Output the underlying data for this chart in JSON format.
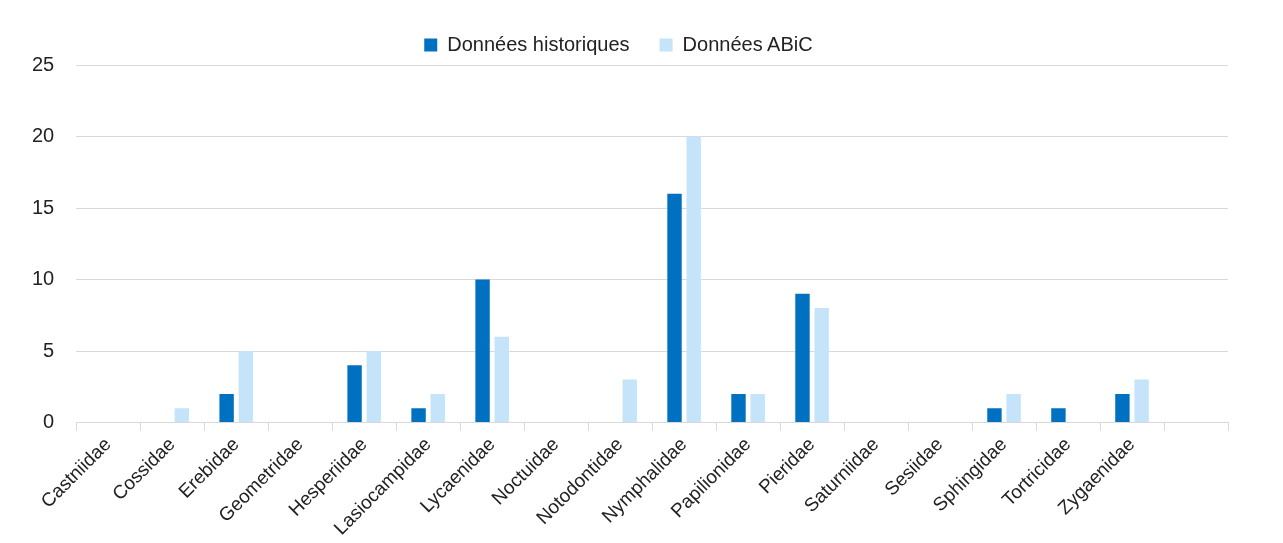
{
  "chart_data": {
    "type": "bar",
    "categories": [
      "Castniidae",
      "Cossidae",
      "Erebidae",
      "Geometridae",
      "Hesperiidae",
      "Lasiocampidae",
      "Lycaenidae",
      "Noctuidae",
      "Notodontidae",
      "Nymphalidae",
      "Papilionidae",
      "Pieridae",
      "Saturniidae",
      "Sesiidae",
      "Sphingidae",
      "Tortricidae",
      "Zygaenidae",
      null
    ],
    "series": [
      {
        "name": "Données historiques",
        "color": "#0070c0",
        "values": [
          null,
          null,
          2,
          null,
          4,
          1,
          10,
          null,
          null,
          16,
          2,
          9,
          null,
          null,
          1,
          1,
          2,
          null
        ]
      },
      {
        "name": "Données ABiC",
        "color": "#c5e4fa",
        "values": [
          null,
          1,
          5,
          null,
          5,
          2,
          6,
          null,
          3,
          20,
          2,
          8,
          null,
          null,
          2,
          null,
          3,
          null
        ]
      }
    ],
    "ylim": [
      0,
      25
    ],
    "yticks": [
      0,
      5,
      10,
      15,
      20,
      25
    ],
    "grid": "y",
    "legend": "top"
  }
}
